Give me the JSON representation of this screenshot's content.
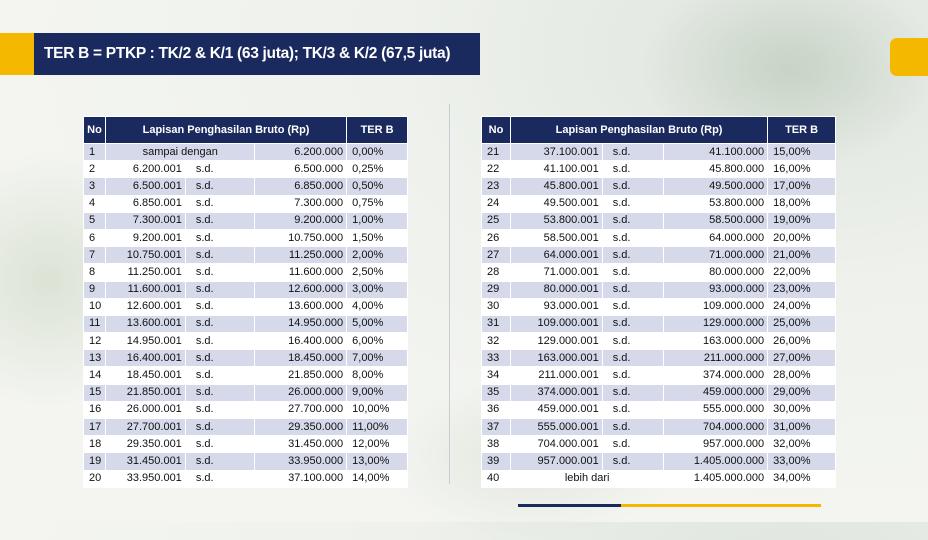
{
  "title": "TER B =  PTKP : TK/2 & K/1 (63 juta); TK/3 & K/2 (67,5 juta)",
  "colors": {
    "navy": "#1b2a5e",
    "accent": "#f5b800",
    "row_alt": "#d5d9ea"
  },
  "table_headers": {
    "no": "No",
    "range": "Lapisan Penghasilan Bruto (Rp)",
    "ter": "TER B"
  },
  "left_rows": [
    {
      "no": "1",
      "from": "sampai dengan",
      "sd": "",
      "to": "6.200.000",
      "ter": "0,00%"
    },
    {
      "no": "2",
      "from": "6.200.001",
      "sd": "s.d.",
      "to": "6.500.000",
      "ter": "0,25%"
    },
    {
      "no": "3",
      "from": "6.500.001",
      "sd": "s.d.",
      "to": "6.850.000",
      "ter": "0,50%"
    },
    {
      "no": "4",
      "from": "6.850.001",
      "sd": "s.d.",
      "to": "7.300.000",
      "ter": "0,75%"
    },
    {
      "no": "5",
      "from": "7.300.001",
      "sd": "s.d.",
      "to": "9.200.000",
      "ter": "1,00%"
    },
    {
      "no": "6",
      "from": "9.200.001",
      "sd": "s.d.",
      "to": "10.750.000",
      "ter": "1,50%"
    },
    {
      "no": "7",
      "from": "10.750.001",
      "sd": "s.d.",
      "to": "11.250.000",
      "ter": "2,00%"
    },
    {
      "no": "8",
      "from": "11.250.001",
      "sd": "s.d.",
      "to": "11.600.000",
      "ter": "2,50%"
    },
    {
      "no": "9",
      "from": "11.600.001",
      "sd": "s.d.",
      "to": "12.600.000",
      "ter": "3,00%"
    },
    {
      "no": "10",
      "from": "12.600.001",
      "sd": "s.d.",
      "to": "13.600.000",
      "ter": "4,00%"
    },
    {
      "no": "11",
      "from": "13.600.001",
      "sd": "s.d.",
      "to": "14.950.000",
      "ter": "5,00%"
    },
    {
      "no": "12",
      "from": "14.950.001",
      "sd": "s.d.",
      "to": "16.400.000",
      "ter": "6,00%"
    },
    {
      "no": "13",
      "from": "16.400.001",
      "sd": "s.d.",
      "to": "18.450.000",
      "ter": "7,00%"
    },
    {
      "no": "14",
      "from": "18.450.001",
      "sd": "s.d.",
      "to": "21.850.000",
      "ter": "8,00%"
    },
    {
      "no": "15",
      "from": "21.850.001",
      "sd": "s.d.",
      "to": "26.000.000",
      "ter": "9,00%"
    },
    {
      "no": "16",
      "from": "26.000.001",
      "sd": "s.d.",
      "to": "27.700.000",
      "ter": "10,00%"
    },
    {
      "no": "17",
      "from": "27.700.001",
      "sd": "s.d.",
      "to": "29.350.000",
      "ter": "11,00%"
    },
    {
      "no": "18",
      "from": "29.350.001",
      "sd": "s.d.",
      "to": "31.450.000",
      "ter": "12,00%"
    },
    {
      "no": "19",
      "from": "31.450.001",
      "sd": "s.d.",
      "to": "33.950.000",
      "ter": "13,00%"
    },
    {
      "no": "20",
      "from": "33.950.001",
      "sd": "s.d.",
      "to": "37.100.000",
      "ter": "14,00%"
    }
  ],
  "right_rows": [
    {
      "no": "21",
      "from": "37.100.001",
      "sd": "s.d.",
      "to": "41.100.000",
      "ter": "15,00%"
    },
    {
      "no": "22",
      "from": "41.100.001",
      "sd": "s.d.",
      "to": "45.800.000",
      "ter": "16,00%"
    },
    {
      "no": "23",
      "from": "45.800.001",
      "sd": "s.d.",
      "to": "49.500.000",
      "ter": "17,00%"
    },
    {
      "no": "24",
      "from": "49.500.001",
      "sd": "s.d.",
      "to": "53.800.000",
      "ter": "18,00%"
    },
    {
      "no": "25",
      "from": "53.800.001",
      "sd": "s.d.",
      "to": "58.500.000",
      "ter": "19,00%"
    },
    {
      "no": "26",
      "from": "58.500.001",
      "sd": "s.d.",
      "to": "64.000.000",
      "ter": "20,00%"
    },
    {
      "no": "27",
      "from": "64.000.001",
      "sd": "s.d.",
      "to": "71.000.000",
      "ter": "21,00%"
    },
    {
      "no": "28",
      "from": "71.000.001",
      "sd": "s.d.",
      "to": "80.000.000",
      "ter": "22,00%"
    },
    {
      "no": "29",
      "from": "80.000.001",
      "sd": "s.d.",
      "to": "93.000.000",
      "ter": "23,00%"
    },
    {
      "no": "30",
      "from": "93.000.001",
      "sd": "s.d.",
      "to": "109.000.000",
      "ter": "24,00%"
    },
    {
      "no": "31",
      "from": "109.000.001",
      "sd": "s.d.",
      "to": "129.000.000",
      "ter": "25,00%"
    },
    {
      "no": "32",
      "from": "129.000.001",
      "sd": "s.d.",
      "to": "163.000.000",
      "ter": "26,00%"
    },
    {
      "no": "33",
      "from": "163.000.001",
      "sd": "s.d.",
      "to": "211.000.000",
      "ter": "27,00%"
    },
    {
      "no": "34",
      "from": "211.000.001",
      "sd": "s.d.",
      "to": "374.000.000",
      "ter": "28,00%"
    },
    {
      "no": "35",
      "from": "374.000.001",
      "sd": "s.d.",
      "to": "459.000.000",
      "ter": "29,00%"
    },
    {
      "no": "36",
      "from": "459.000.001",
      "sd": "s.d.",
      "to": "555.000.000",
      "ter": "30,00%"
    },
    {
      "no": "37",
      "from": "555.000.001",
      "sd": "s.d.",
      "to": "704.000.000",
      "ter": "31,00%"
    },
    {
      "no": "38",
      "from": "704.000.001",
      "sd": "s.d.",
      "to": "957.000.000",
      "ter": "32,00%"
    },
    {
      "no": "39",
      "from": "957.000.001",
      "sd": "s.d.",
      "to": "1.405.000.000",
      "ter": "33,00%"
    },
    {
      "no": "40",
      "from": "lebih dari",
      "sd": "",
      "to": "1.405.000.000",
      "ter": "34,00%"
    }
  ]
}
